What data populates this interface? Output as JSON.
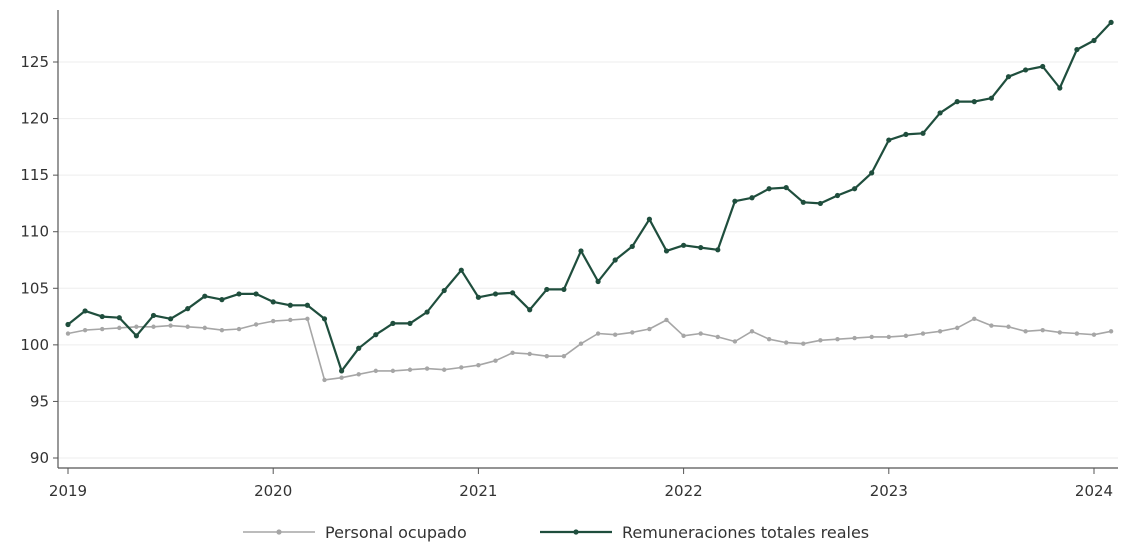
{
  "chart_data": {
    "type": "line",
    "title": "",
    "xlabel": "",
    "ylabel": "",
    "ylim": [
      89,
      129
    ],
    "yticks": [
      90,
      95,
      100,
      105,
      110,
      115,
      120,
      125
    ],
    "xticks": [
      {
        "label": "2019",
        "value": 0
      },
      {
        "label": "2020",
        "value": 12
      },
      {
        "label": "2021",
        "value": 24
      },
      {
        "label": "2022",
        "value": 36
      },
      {
        "label": "2023",
        "value": 48
      },
      {
        "label": "2024",
        "value": 60
      }
    ],
    "x_start": "2019-01",
    "x_frequency": "monthly",
    "grid": "horizontal",
    "legend_position": "bottom-center",
    "series": [
      {
        "name": "Personal ocupado",
        "color": "#a6a6a6",
        "values": [
          101.0,
          101.3,
          101.4,
          101.5,
          101.6,
          101.6,
          101.7,
          101.6,
          101.5,
          101.3,
          101.4,
          101.8,
          102.1,
          102.2,
          102.3,
          96.9,
          97.1,
          97.4,
          97.7,
          97.7,
          97.8,
          97.9,
          97.8,
          98.0,
          98.2,
          98.6,
          99.3,
          99.2,
          99.0,
          99.0,
          100.1,
          101.0,
          100.9,
          101.1,
          101.4,
          102.2,
          100.8,
          101.0,
          100.7,
          100.3,
          101.2,
          100.5,
          100.2,
          100.1,
          100.4,
          100.5,
          100.6,
          100.7,
          100.7,
          100.8,
          101.0,
          101.2,
          101.5,
          102.3,
          101.7,
          101.6,
          101.2,
          101.3,
          101.1,
          101.0,
          100.9,
          101.2
        ]
      },
      {
        "name": "Remuneraciones totales reales",
        "color": "#1f4e3d",
        "values": [
          101.8,
          103.0,
          102.5,
          102.4,
          100.8,
          102.6,
          102.3,
          103.2,
          104.3,
          104.0,
          104.5,
          104.5,
          103.8,
          103.5,
          103.5,
          102.3,
          97.7,
          99.7,
          100.9,
          101.9,
          101.9,
          102.9,
          104.8,
          106.6,
          104.2,
          104.5,
          104.6,
          103.1,
          104.9,
          104.9,
          108.3,
          105.6,
          107.5,
          108.7,
          111.1,
          108.3,
          108.8,
          108.6,
          108.4,
          112.7,
          113.0,
          113.8,
          113.9,
          112.6,
          112.5,
          113.2,
          113.8,
          115.2,
          118.1,
          118.6,
          118.7,
          120.5,
          121.5,
          121.5,
          121.8,
          123.7,
          124.3,
          124.6,
          122.7,
          126.1,
          126.9,
          128.5
        ]
      }
    ]
  }
}
